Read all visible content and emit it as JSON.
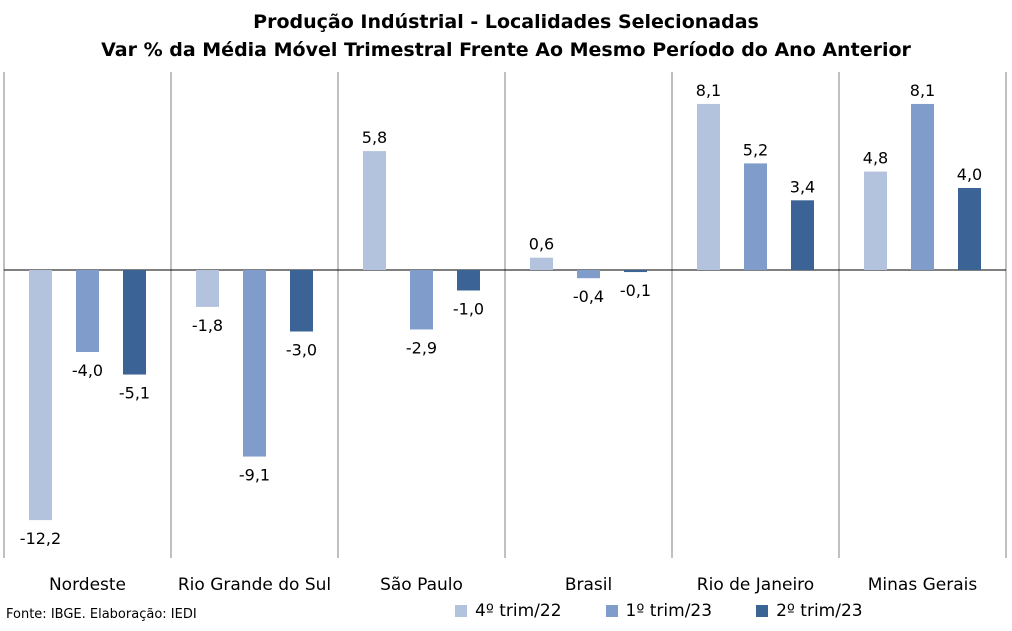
{
  "chart_data": {
    "type": "bar",
    "title": "Produção Indústrial - Localidades Selecionadas",
    "subtitle": "Var % da Média Móvel Trimestral Frente Ao Mesmo Período do Ano Anterior",
    "categories": [
      "Nordeste",
      "Rio Grande do Sul",
      "São Paulo",
      "Brasil",
      "Rio de Janeiro",
      "Minas Gerais"
    ],
    "series": [
      {
        "name": "4º trim/22",
        "color": "#b3c3dd",
        "values": [
          -12.2,
          -1.8,
          5.8,
          0.6,
          8.1,
          4.8
        ],
        "labels": [
          "-12,2",
          "-1,8",
          "5,8",
          "0,6",
          "8,1",
          "4,8"
        ]
      },
      {
        "name": "1º trim/23",
        "color": "#7f9ccb",
        "values": [
          -4.0,
          -9.1,
          -2.9,
          -0.4,
          5.2,
          8.1
        ],
        "labels": [
          "-4,0",
          "-9,1",
          "-2,9",
          "-0,4",
          "5,2",
          "8,1"
        ]
      },
      {
        "name": "2º trim/23",
        "color": "#3b6395",
        "values": [
          -5.1,
          -3.0,
          -1.0,
          -0.1,
          3.4,
          4.0
        ],
        "labels": [
          "-5,1",
          "-3,0",
          "-1,0",
          "-0,1",
          "3,4",
          "4,0"
        ]
      }
    ],
    "grid": "vertical category separators",
    "legend": "bottom"
  },
  "footer": {
    "source": "Fonte: IBGE. Elaboração: IEDI"
  }
}
